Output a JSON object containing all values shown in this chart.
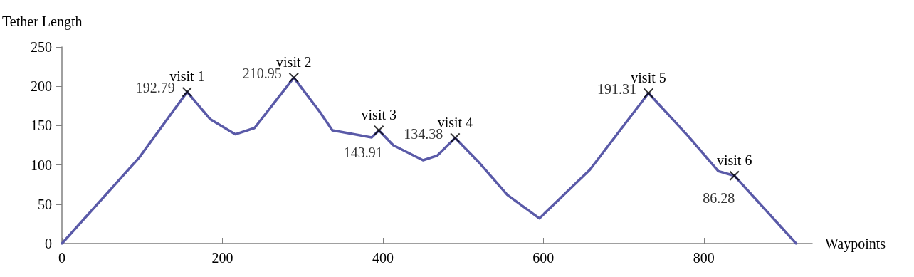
{
  "chart_data": {
    "type": "line",
    "xlabel": "Waypoints",
    "ylabel": "Tether Length",
    "xlim": [
      0,
      935
    ],
    "ylim": [
      0,
      250
    ],
    "xticks": [
      0,
      {
        "value": 100,
        "label": null
      },
      200,
      {
        "value": 300,
        "label": null
      },
      400,
      {
        "value": 500,
        "label": null
      },
      600,
      {
        "value": 700,
        "label": null
      },
      800,
      {
        "value": 900,
        "label": null
      }
    ],
    "yticks": [
      0,
      50,
      100,
      150,
      200,
      250
    ],
    "grid": false,
    "series": [
      {
        "color": "#5a5aa8",
        "marker": "none",
        "line_style": "solid",
        "x": [
          0,
          96,
          156,
          185,
          216,
          240,
          289,
          321,
          337,
          386,
          395,
          413,
          450,
          468,
          490,
          519,
          555,
          595,
          658,
          731,
          781,
          818,
          838,
          915
        ],
        "values": [
          0,
          109,
          192.79,
          158,
          139,
          147,
          210.95,
          168,
          144,
          135,
          143.91,
          125,
          106,
          112,
          134.38,
          104,
          62,
          32,
          94,
          191.31,
          136,
          92,
          86.28,
          0
        ]
      },
      {
        "type": "scatter",
        "color": "#000000",
        "marker": "cross",
        "x": [
          156,
          289,
          395,
          490,
          731,
          838
        ],
        "values": [
          192.79,
          210.95,
          143.91,
          134.38,
          191.31,
          86.28
        ],
        "value_labels": [
          "192.79",
          "210.95",
          "143.91",
          "134.38",
          "191.31",
          "86.28"
        ]
      }
    ],
    "annotations": [
      {
        "text": "visit 1",
        "x": 156,
        "y": 192.79
      },
      {
        "text": "visit 2",
        "x": 289,
        "y": 210.95
      },
      {
        "text": "visit 3",
        "x": 395,
        "y": 143.91
      },
      {
        "text": "visit 4",
        "x": 490,
        "y": 134.38
      },
      {
        "text": "visit 5",
        "x": 731,
        "y": 191.31
      },
      {
        "text": "visit 6",
        "x": 838,
        "y": 86.28
      }
    ]
  }
}
